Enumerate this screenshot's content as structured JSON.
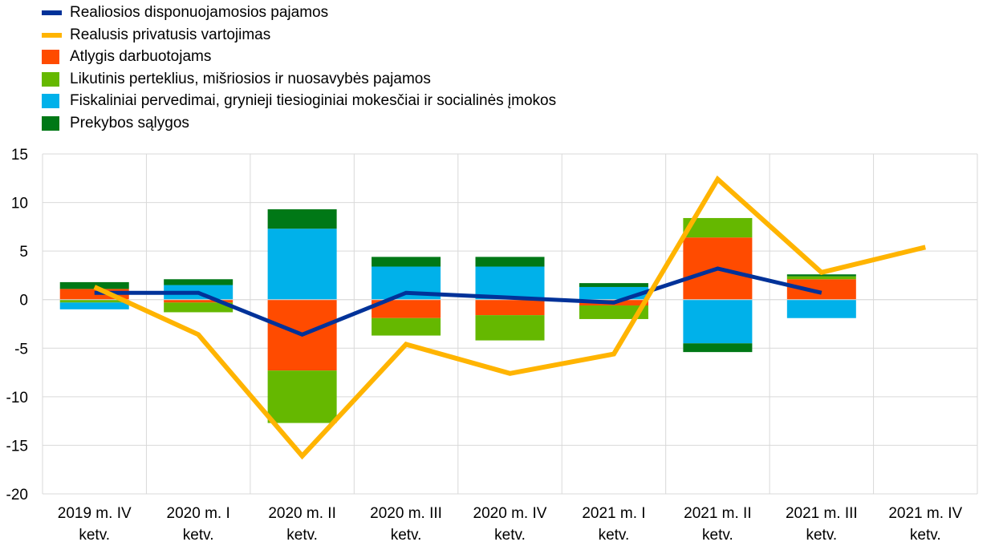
{
  "chart_data": {
    "type": "bar",
    "title": "",
    "xlabel": "",
    "ylabel": "",
    "ylim": [
      -20,
      15
    ],
    "y_ticks": [
      15,
      10,
      5,
      0,
      -5,
      -10,
      -15,
      -20
    ],
    "grid": true,
    "legend_position": "top-left",
    "categories": [
      [
        "2019 m. IV",
        "ketv."
      ],
      [
        "2020 m. I",
        "ketv."
      ],
      [
        "2020 m. II",
        "ketv."
      ],
      [
        "2020 m. III",
        "ketv."
      ],
      [
        "2020 m. IV",
        "ketv."
      ],
      [
        "2021 m. I",
        "ketv."
      ],
      [
        "2021 m. II",
        "ketv."
      ],
      [
        "2021 m. III",
        "ketv."
      ],
      [
        "2021 m. IV",
        "ketv."
      ]
    ],
    "bar_series": [
      {
        "name": "Atlygis darbuotojams",
        "color": "#ff4b00",
        "values": [
          1.1,
          -0.3,
          -7.3,
          -1.9,
          -1.6,
          -0.6,
          6.4,
          2.1,
          null
        ]
      },
      {
        "name": "Likutinis perteklius, mišriosios ir nuosavybės pajamos",
        "color": "#65b800",
        "values": [
          -0.3,
          -1.0,
          -5.4,
          -1.8,
          -2.6,
          -1.4,
          2.0,
          0.3,
          null
        ]
      },
      {
        "name": "Fiskaliniai pervedimai, grynieji tiesioginiai mokesčiai ir socialinės įmokos",
        "color": "#00b1ea",
        "values": [
          -0.7,
          1.5,
          7.3,
          3.4,
          3.4,
          1.3,
          -4.5,
          -1.9,
          null
        ]
      },
      {
        "name": "Prekybos sąlygos",
        "color": "#007816",
        "values": [
          0.7,
          0.6,
          2.0,
          1.0,
          1.0,
          0.4,
          -0.9,
          0.2,
          null
        ]
      }
    ],
    "line_series": [
      {
        "name": "Realiosios disponuojamosios pajamos",
        "color": "#003299",
        "values": [
          0.7,
          0.7,
          -3.6,
          0.7,
          0.2,
          -0.3,
          3.2,
          0.7,
          null
        ]
      },
      {
        "name": "Realusis privatusis vartojimas",
        "color": "#ffb400",
        "values": [
          1.3,
          -3.6,
          -16.1,
          -4.6,
          -7.6,
          -5.6,
          12.4,
          2.8,
          5.4
        ]
      }
    ]
  },
  "legend": [
    {
      "kind": "line",
      "label": "Realiosios disponuojamosios pajamos",
      "color": "#003299"
    },
    {
      "kind": "line",
      "label": "Realusis privatusis vartojimas",
      "color": "#ffb400"
    },
    {
      "kind": "box",
      "label": "Atlygis darbuotojams",
      "color": "#ff4b00"
    },
    {
      "kind": "box",
      "label": "Likutinis perteklius, mišriosios ir nuosavybės pajamos",
      "color": "#65b800"
    },
    {
      "kind": "box",
      "label": "Fiskaliniai pervedimai, grynieji tiesioginiai mokesčiai ir socialinės įmokos",
      "color": "#00b1ea"
    },
    {
      "kind": "box",
      "label": "Prekybos sąlygos",
      "color": "#007816"
    }
  ]
}
